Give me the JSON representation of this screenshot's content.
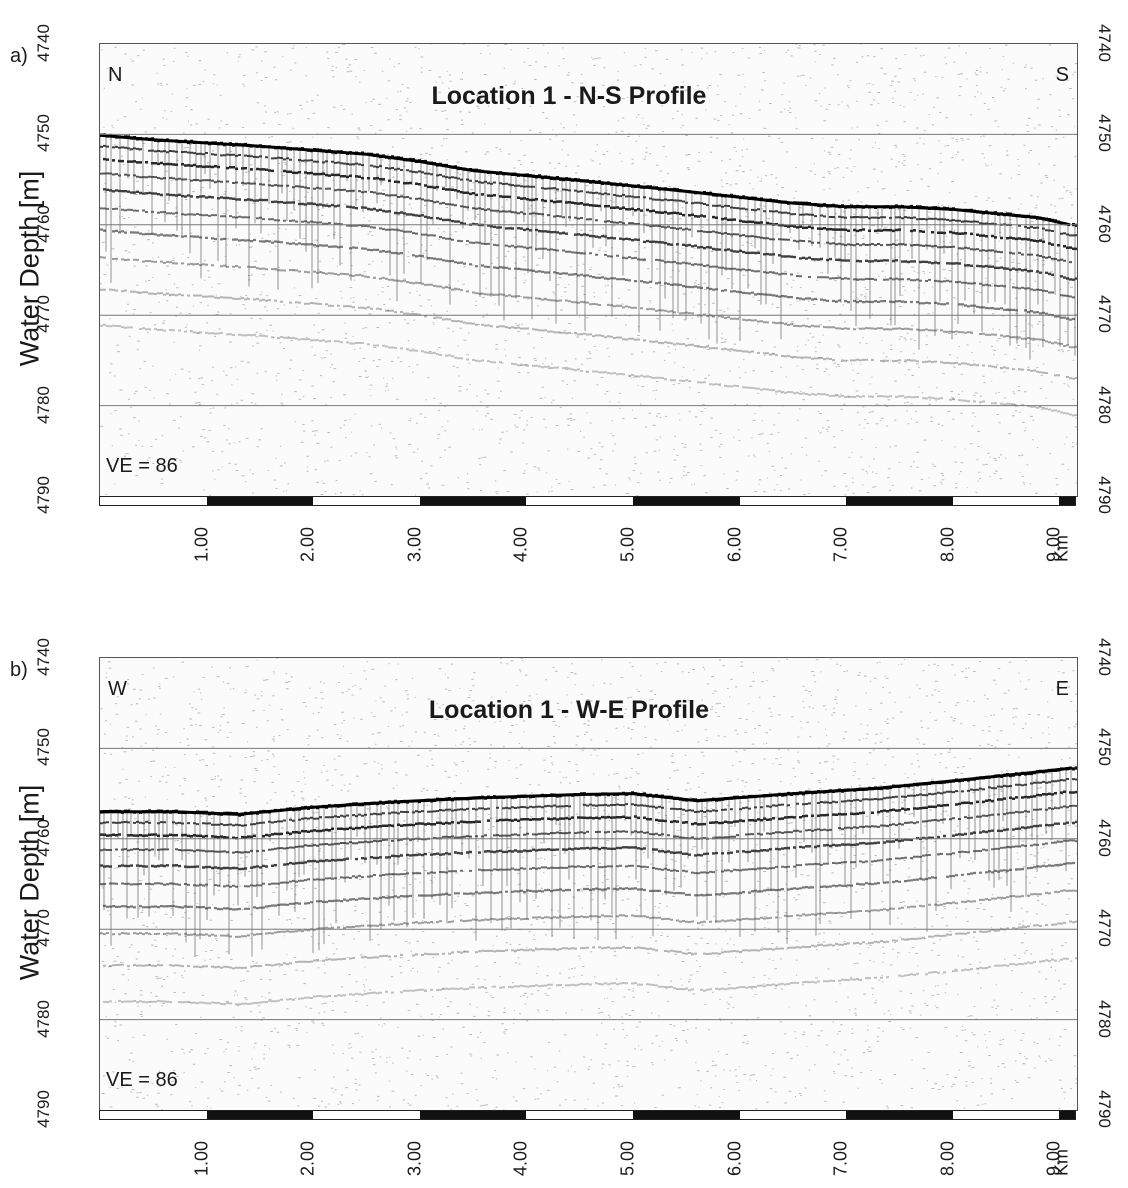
{
  "panels": [
    {
      "panel_label": "a)",
      "title": "Location 1  -  N-S Profile",
      "left_corner": "N",
      "right_corner": "S",
      "ve_text": "VE = 86",
      "ylabel": "Water Depth [m]",
      "yticks": [
        "4740",
        "4750",
        "4760",
        "4770",
        "4780",
        "4790"
      ],
      "xticks": [
        "1.00",
        "2.00",
        "3.00",
        "4.00",
        "5.00",
        "6.00",
        "7.00",
        "8.00",
        "9.00"
      ],
      "xunit": "Km",
      "seafloor_depths_m": [
        4750.1,
        4750.6,
        4751.3,
        4752.2,
        4753.0,
        4754.0,
        4755.1,
        4756.3,
        4757.6,
        4758.0,
        4758.0,
        4758.3,
        4759.2,
        4760.0
      ],
      "seafloor_km": [
        0,
        0.5,
        1.5,
        2.5,
        3.0,
        3.5,
        4.5,
        5.5,
        6.5,
        7.0,
        7.5,
        8.0,
        8.8,
        9.1
      ]
    },
    {
      "panel_label": "b)",
      "title": "Location 1  -  W-E Profile",
      "left_corner": "W",
      "right_corner": "E",
      "ve_text": "VE = 86",
      "ylabel": "Water Depth [m]",
      "yticks": [
        "4740",
        "4750",
        "4760",
        "4770",
        "4780",
        "4790"
      ],
      "xticks": [
        "1.00",
        "2.00",
        "3.00",
        "4.00",
        "5.00",
        "6.00",
        "7.00",
        "8.00",
        "9.00"
      ],
      "xunit": "Km",
      "seafloor_depths_m": [
        4757.0,
        4757.0,
        4757.3,
        4756.5,
        4755.9,
        4755.5,
        4755.1,
        4755.0,
        4755.8,
        4755.0,
        4754.4,
        4753.6,
        4752.6,
        4752.2
      ],
      "seafloor_km": [
        0,
        0.7,
        1.3,
        2.0,
        2.8,
        3.5,
        4.5,
        5.0,
        5.6,
        6.5,
        7.3,
        8.0,
        8.8,
        9.1
      ]
    }
  ]
}
